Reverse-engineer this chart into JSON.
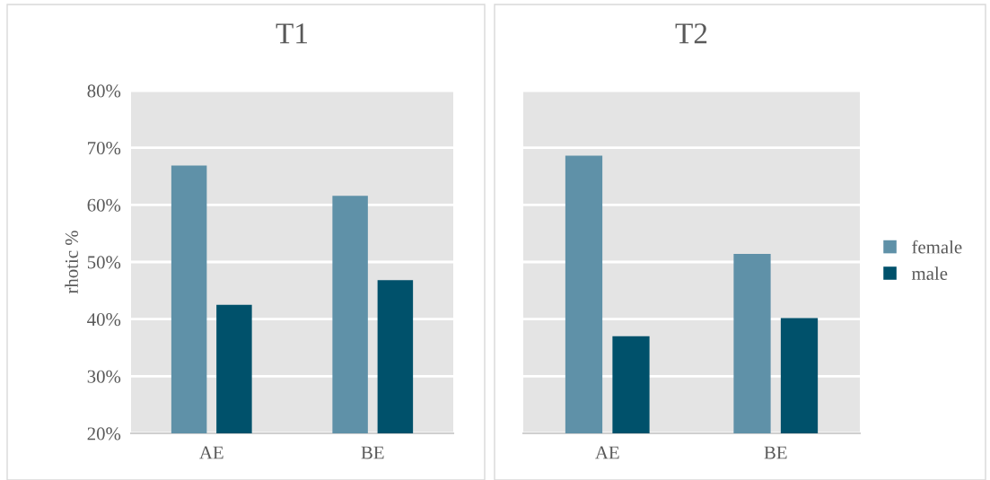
{
  "chart_data": [
    {
      "type": "bar",
      "title": "T1",
      "ylabel": "rhotic %",
      "categories": [
        "AE",
        "BE"
      ],
      "series": [
        {
          "color": "#5f91a8",
          "values": [
            66.9,
            61.6
          ]
        },
        {
          "color": "#00516b",
          "values": [
            42.5,
            46.8
          ]
        }
      ],
      "ylim": [
        20,
        80
      ],
      "yticks": [
        {
          "value": 20,
          "label": "20%"
        },
        {
          "value": 30,
          "label": "30%"
        },
        {
          "value": 40,
          "label": "40%"
        },
        {
          "value": 50,
          "label": "50%"
        },
        {
          "value": 60,
          "label": "60%"
        },
        {
          "value": 70,
          "label": "70%"
        },
        {
          "value": 80,
          "label": "80%"
        }
      ],
      "grid": "y"
    },
    {
      "type": "bar",
      "title": "T2",
      "categories": [
        "AE",
        "BE"
      ],
      "series": [
        {
          "name": "female",
          "color": "#5f91a8",
          "values": [
            68.6,
            51.4
          ]
        },
        {
          "name": "male",
          "color": "#00516b",
          "values": [
            37.0,
            40.2
          ]
        }
      ],
      "ylim": [
        20,
        80
      ],
      "yticks": [
        20,
        30,
        40,
        50,
        60,
        70,
        80
      ],
      "grid": "y",
      "legend": "right",
      "tick_labels": "x"
    }
  ]
}
